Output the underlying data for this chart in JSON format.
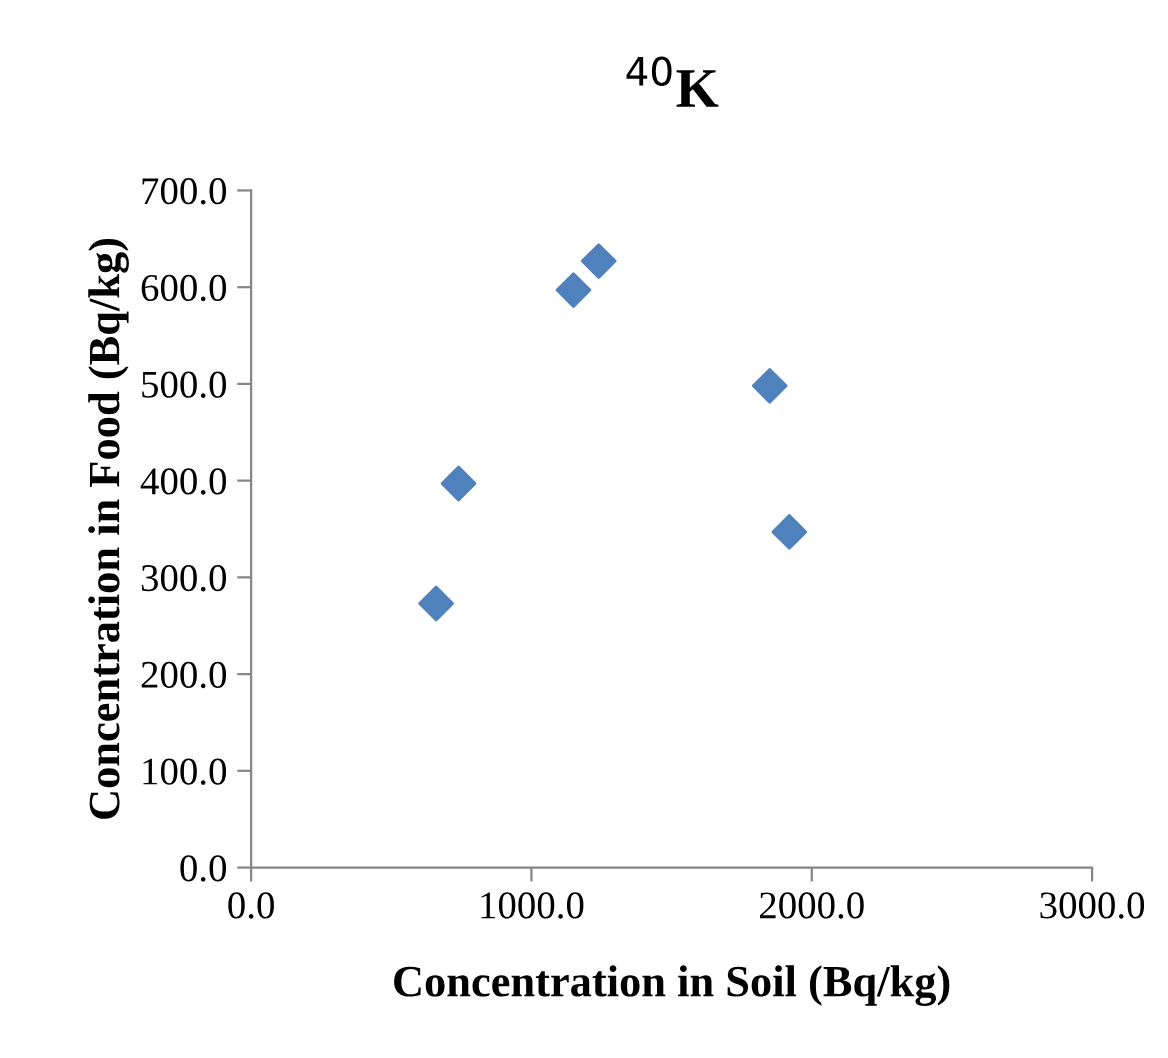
{
  "chart_data": {
    "type": "scatter",
    "title": "$^{40}$K",
    "xlabel": "Concentration in Soil (Bq/kg)",
    "ylabel": "Concentration in Food (Bq/kg)",
    "x": [
      660,
      740,
      1150,
      1240,
      1850,
      1920
    ],
    "series": [
      {
        "color": "#4f81bd",
        "values": [
          273,
          397,
          597,
          627,
          498,
          347
        ]
      }
    ],
    "marker": "diamond",
    "grid": false,
    "legend": false,
    "xlim": [
      0,
      3000
    ],
    "xticks": [
      {
        "value": 0,
        "label": "0.0"
      },
      {
        "value": 1000,
        "label": "1000.0"
      },
      {
        "value": 2000,
        "label": "2000.0"
      },
      {
        "value": 3000,
        "label": "3000.0"
      }
    ],
    "ylim": [
      0,
      700
    ],
    "yticks": [
      {
        "value": 0,
        "label": "0.0"
      },
      {
        "value": 100,
        "label": "100.0"
      },
      {
        "value": 200,
        "label": "200.0"
      },
      {
        "value": 300,
        "label": "300.0"
      },
      {
        "value": 400,
        "label": "400.0"
      },
      {
        "value": 500,
        "label": "500.0"
      },
      {
        "value": 600,
        "label": "600.0"
      },
      {
        "value": 700,
        "label": "700.0"
      }
    ]
  }
}
